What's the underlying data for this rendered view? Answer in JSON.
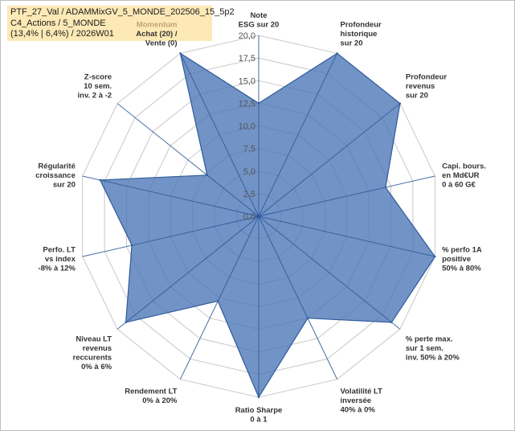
{
  "header": {
    "line1": "PTF_27_Val / ADAMMixGV_5_MONDE_202506_15_5p2",
    "line2": "C4_Actions / 5_MONDE",
    "line3": "(13,4% | 6,4%) / 2026W01"
  },
  "colors": {
    "fill": "#4a74b5",
    "stroke": "#2f5b9c",
    "grid": "#c8c8c8",
    "spoke": "#2f5b9c",
    "header_bg": "#fde9b6",
    "highlight_label": "#bfa370"
  },
  "chart_data": {
    "type": "radar",
    "r_max": 20,
    "ticks": [
      "0,0",
      "2,5",
      "5,0",
      "7,5",
      "10,0",
      "12,5",
      "15,0",
      "17,5",
      "20,0"
    ],
    "axes": [
      {
        "label_lines": [
          "Note",
          "ESG sur 20"
        ],
        "value": 12.5
      },
      {
        "label_lines": [
          "Profondeur",
          "historique",
          "sur 20"
        ],
        "value": 20
      },
      {
        "label_lines": [
          "Profondeur",
          "revenus",
          "sur 20"
        ],
        "value": 20
      },
      {
        "label_lines": [
          "Capi. bours.",
          "en Md€UR",
          "0 à 60 G€"
        ],
        "value": 14.4
      },
      {
        "label_lines": [
          "% perfo 1A",
          "positive",
          "50% à 80%"
        ],
        "value": 20
      },
      {
        "label_lines": [
          "% perte max.",
          "sur 1 sem.",
          "inv. 50% à 20%"
        ],
        "value": 18.8
      },
      {
        "label_lines": [
          "Volatilité LT",
          "inversée",
          "40% à 0%"
        ],
        "value": 12.5
      },
      {
        "label_lines": [
          "Ratio Sharpe",
          "0 à 1"
        ],
        "value": 20
      },
      {
        "label_lines": [
          "Rendement LT",
          "0% à 20%"
        ],
        "value": 10.4
      },
      {
        "label_lines": [
          "Niveau LT",
          "revenus",
          "reccurents",
          "0% à 6%"
        ],
        "value": 18.8
      },
      {
        "label_lines": [
          "Perfo. LT",
          "vs index",
          "-8% à 12%"
        ],
        "value": 14.4
      },
      {
        "label_lines": [
          "Régularité",
          "croissance",
          "sur 20"
        ],
        "value": 18
      },
      {
        "label_lines": [
          "Z-score",
          "10 sem.",
          "inv. 2 à -2"
        ],
        "value": 7.3
      },
      {
        "label_lines": [
          "Momentum",
          "Achat (20) /",
          "Vente (0)"
        ],
        "value": 20,
        "highlight_first_line": true
      }
    ]
  }
}
